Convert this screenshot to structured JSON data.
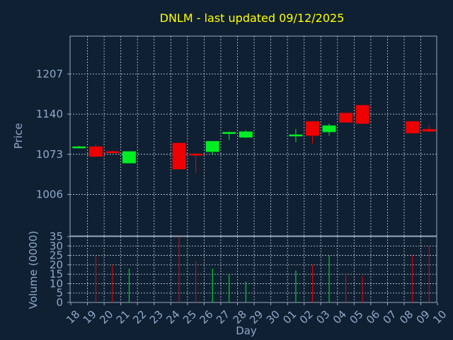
{
  "colors": {
    "background": "#0f2033",
    "up": "#00ee22",
    "down": "#ee0000",
    "title": "#ffff00",
    "text": "#8fa8c8"
  },
  "chart_data": {
    "type": "candlestick",
    "title": "DNLM - last updated 09/12/2025",
    "xlabel": "Day",
    "ylabel": "Price",
    "volume_label": "Volume (0000)",
    "x_ticks": [
      "18",
      "19",
      "20",
      "21",
      "22",
      "23",
      "24",
      "25",
      "26",
      "27",
      "28",
      "29",
      "30",
      "01",
      "02",
      "03",
      "04",
      "05",
      "06",
      "07",
      "08",
      "09",
      "10"
    ],
    "y_ticks": [
      1006,
      1073,
      1140,
      1207
    ],
    "ylim": [
      937,
      1270
    ],
    "volume_ticks": [
      0,
      5,
      10,
      15,
      20,
      25,
      30,
      35
    ],
    "volume_lim": [
      0,
      35
    ],
    "grid": true,
    "candles": [
      {
        "day": "18",
        "open": 1084,
        "close": 1086,
        "high": 1087,
        "low": 1083,
        "volume": 0
      },
      {
        "day": "19",
        "open": 1086,
        "close": 1069,
        "high": 1090,
        "low": 1069,
        "volume": 25
      },
      {
        "day": "20",
        "open": 1078,
        "close": 1075,
        "high": 1079,
        "low": 1075,
        "volume": 20
      },
      {
        "day": "21",
        "open": 1058,
        "close": 1078,
        "high": 1078,
        "low": 1058,
        "volume": 18
      },
      {
        "day": "24",
        "open": 1092,
        "close": 1048,
        "high": 1092,
        "low": 1048,
        "volume": 35
      },
      {
        "day": "25",
        "open": 1074,
        "close": 1071,
        "high": 1075,
        "low": 1042,
        "volume": 22
      },
      {
        "day": "26",
        "open": 1077,
        "close": 1095,
        "high": 1095,
        "low": 1073,
        "volume": 18
      },
      {
        "day": "27",
        "open": 1108,
        "close": 1110,
        "high": 1111,
        "low": 1097,
        "volume": 15
      },
      {
        "day": "28",
        "open": 1101,
        "close": 1111,
        "high": 1113,
        "low": 1100,
        "volume": 11
      },
      {
        "day": "01",
        "open": 1103,
        "close": 1106,
        "high": 1115,
        "low": 1093,
        "volume": 17
      },
      {
        "day": "02",
        "open": 1128,
        "close": 1104,
        "high": 1128,
        "low": 1091,
        "volume": 20
      },
      {
        "day": "03",
        "open": 1110,
        "close": 1121,
        "high": 1124,
        "low": 1104,
        "volume": 25
      },
      {
        "day": "04",
        "open": 1142,
        "close": 1126,
        "high": 1142,
        "low": 1126,
        "volume": 15
      },
      {
        "day": "05",
        "open": 1155,
        "close": 1124,
        "high": 1155,
        "low": 1124,
        "volume": 14
      },
      {
        "day": "08",
        "open": 1128,
        "close": 1108,
        "high": 1128,
        "low": 1108,
        "volume": 25
      },
      {
        "day": "09",
        "open": 1115,
        "close": 1111,
        "high": 1122,
        "low": 1111,
        "volume": 30
      }
    ]
  }
}
